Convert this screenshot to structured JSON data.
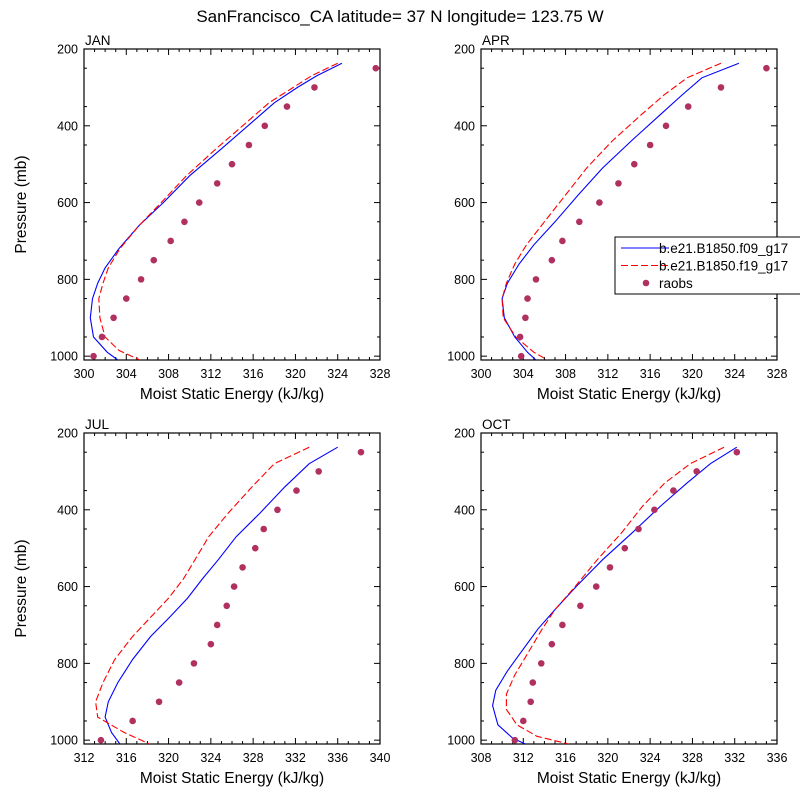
{
  "figure": {
    "title": "SanFrancisco_CA  latitude= 37 N longitude= 123.75 W"
  },
  "legend": {
    "entries": [
      {
        "label": "b.e21.B1850.f09_g17",
        "color": "#0000ff",
        "style": "solid"
      },
      {
        "label": "b.e21.B1850.f19_g17",
        "color": "#ff0000",
        "style": "dashed"
      },
      {
        "label": "raobs",
        "color": "#b03060",
        "style": "dot"
      }
    ]
  },
  "chart_data": [
    {
      "type": "line",
      "title": "JAN",
      "xlabel": "Moist Static Energy (kJ/kg)",
      "ylabel": "Pressure (mb)",
      "xlim": [
        300,
        328
      ],
      "ylim": [
        1010,
        200
      ],
      "xticks": [
        300,
        304,
        308,
        312,
        316,
        320,
        324,
        328
      ],
      "yticks": [
        200,
        400,
        600,
        800,
        1000
      ],
      "series": [
        {
          "name": "b.e21.B1850.f09_g17",
          "color": "#0000ff",
          "style": "solid",
          "points": [
            [
              324.4,
              237
            ],
            [
              322,
              270
            ],
            [
              320.2,
              300
            ],
            [
              318,
              340
            ],
            [
              315.5,
              400
            ],
            [
              313,
              460
            ],
            [
              310,
              530
            ],
            [
              307.5,
              600
            ],
            [
              305.2,
              660
            ],
            [
              303.3,
              720
            ],
            [
              302,
              770
            ],
            [
              301.3,
              810
            ],
            [
              300.8,
              850
            ],
            [
              300.6,
              900
            ],
            [
              300.9,
              950
            ],
            [
              302.2,
              990
            ],
            [
              303.2,
              1010
            ]
          ]
        },
        {
          "name": "b.e21.B1850.f19_g17",
          "color": "#ff0000",
          "style": "dashed",
          "points": [
            [
              324,
              237
            ],
            [
              321.5,
              270
            ],
            [
              319.8,
              300
            ],
            [
              317.5,
              340
            ],
            [
              315,
              400
            ],
            [
              312.5,
              460
            ],
            [
              309.7,
              530
            ],
            [
              307.3,
              600
            ],
            [
              305.2,
              660
            ],
            [
              303.4,
              720
            ],
            [
              302.3,
              770
            ],
            [
              301.8,
              810
            ],
            [
              301.4,
              850
            ],
            [
              301.5,
              900
            ],
            [
              302,
              950
            ],
            [
              303.3,
              985
            ],
            [
              305.3,
              1010
            ]
          ]
        },
        {
          "name": "raobs",
          "color": "#b03060",
          "style": "dot",
          "points": [
            [
              327.6,
              250
            ],
            [
              321.8,
              300
            ],
            [
              319.2,
              350
            ],
            [
              317.1,
              400
            ],
            [
              315.6,
              450
            ],
            [
              314,
              500
            ],
            [
              312.6,
              550
            ],
            [
              310.9,
              600
            ],
            [
              309.5,
              650
            ],
            [
              308.2,
              700
            ],
            [
              306.6,
              750
            ],
            [
              305.4,
              800
            ],
            [
              304,
              850
            ],
            [
              302.8,
              900
            ],
            [
              301.7,
              950
            ],
            [
              300.9,
              1000
            ]
          ]
        }
      ]
    },
    {
      "type": "line",
      "title": "APR",
      "xlabel": "Moist Static Energy (kJ/kg)",
      "ylabel": "",
      "xlim": [
        300,
        328
      ],
      "ylim": [
        1010,
        200
      ],
      "xticks": [
        300,
        304,
        308,
        312,
        316,
        320,
        324,
        328
      ],
      "yticks": [
        200,
        400,
        600,
        800,
        1000
      ],
      "series": [
        {
          "name": "b.e21.B1850.f09_g17",
          "color": "#0000ff",
          "style": "solid",
          "points": [
            [
              324.4,
              237
            ],
            [
              320.9,
              275
            ],
            [
              319,
              320
            ],
            [
              317,
              370
            ],
            [
              314.2,
              440
            ],
            [
              311.5,
              510
            ],
            [
              309.2,
              580
            ],
            [
              307,
              650
            ],
            [
              305,
              710
            ],
            [
              303.6,
              760
            ],
            [
              302.5,
              810
            ],
            [
              302,
              850
            ],
            [
              302.2,
              900
            ],
            [
              303.2,
              950
            ],
            [
              304.4,
              990
            ],
            [
              305.2,
              1010
            ]
          ]
        },
        {
          "name": "b.e21.B1850.f19_g17",
          "color": "#ff0000",
          "style": "dashed",
          "points": [
            [
              322.7,
              237
            ],
            [
              319.5,
              275
            ],
            [
              317.3,
              320
            ],
            [
              315.2,
              370
            ],
            [
              312.4,
              440
            ],
            [
              310,
              510
            ],
            [
              308,
              580
            ],
            [
              306,
              650
            ],
            [
              304.3,
              710
            ],
            [
              303.2,
              760
            ],
            [
              302.4,
              810
            ],
            [
              302,
              850
            ],
            [
              302.1,
              900
            ],
            [
              303.3,
              950
            ],
            [
              305,
              990
            ],
            [
              306.3,
              1010
            ]
          ]
        },
        {
          "name": "raobs",
          "color": "#b03060",
          "style": "dot",
          "points": [
            [
              327,
              250
            ],
            [
              322.7,
              300
            ],
            [
              319.6,
              350
            ],
            [
              317.5,
              400
            ],
            [
              316,
              450
            ],
            [
              314.5,
              500
            ],
            [
              313,
              550
            ],
            [
              311.2,
              600
            ],
            [
              309.3,
              650
            ],
            [
              307.7,
              700
            ],
            [
              306.7,
              750
            ],
            [
              305.2,
              800
            ],
            [
              304.4,
              850
            ],
            [
              304.2,
              900
            ],
            [
              303.7,
              950
            ],
            [
              303.8,
              1000
            ]
          ]
        }
      ]
    },
    {
      "type": "line",
      "title": "JUL",
      "xlabel": "Moist Static Energy (kJ/kg)",
      "ylabel": "Pressure (mb)",
      "xlim": [
        312,
        340
      ],
      "ylim": [
        1010,
        200
      ],
      "xticks": [
        312,
        316,
        320,
        324,
        328,
        332,
        336,
        340
      ],
      "yticks": [
        200,
        400,
        600,
        800,
        1000
      ],
      "series": [
        {
          "name": "b.e21.B1850.f09_g17",
          "color": "#0000ff",
          "style": "solid",
          "points": [
            [
              336,
              237
            ],
            [
              333.3,
              280
            ],
            [
              331,
              340
            ],
            [
              328.6,
              410
            ],
            [
              326.4,
              470
            ],
            [
              324.7,
              530
            ],
            [
              323.2,
              580
            ],
            [
              321.8,
              630
            ],
            [
              320.1,
              680
            ],
            [
              318.3,
              730
            ],
            [
              316.6,
              790
            ],
            [
              315.2,
              850
            ],
            [
              314.3,
              900
            ],
            [
              314,
              940
            ],
            [
              314.6,
              980
            ],
            [
              315.4,
              1010
            ]
          ]
        },
        {
          "name": "b.e21.B1850.f19_g17",
          "color": "#ff0000",
          "style": "dashed",
          "points": [
            [
              333.3,
              237
            ],
            [
              330,
              280
            ],
            [
              327.9,
              340
            ],
            [
              325.6,
              410
            ],
            [
              323.8,
              470
            ],
            [
              322.5,
              530
            ],
            [
              321.4,
              580
            ],
            [
              320,
              630
            ],
            [
              318.3,
              680
            ],
            [
              316.6,
              730
            ],
            [
              314.9,
              790
            ],
            [
              313.8,
              850
            ],
            [
              313.1,
              900
            ],
            [
              313.3,
              940
            ],
            [
              315.8,
              980
            ],
            [
              318.2,
              1010
            ]
          ]
        },
        {
          "name": "raobs",
          "color": "#b03060",
          "style": "dot",
          "points": [
            [
              338.2,
              250
            ],
            [
              334.2,
              300
            ],
            [
              332.1,
              350
            ],
            [
              330.3,
              400
            ],
            [
              329,
              450
            ],
            [
              328.2,
              500
            ],
            [
              327,
              550
            ],
            [
              326.2,
              600
            ],
            [
              325.5,
              650
            ],
            [
              324.6,
              700
            ],
            [
              324,
              750
            ],
            [
              322.4,
              800
            ],
            [
              321,
              850
            ],
            [
              319.1,
              900
            ],
            [
              316.6,
              950
            ],
            [
              313.6,
              1000
            ]
          ]
        }
      ]
    },
    {
      "type": "line",
      "title": "OCT",
      "xlabel": "Moist Static Energy (kJ/kg)",
      "ylabel": "",
      "xlim": [
        308,
        336
      ],
      "ylim": [
        1010,
        200
      ],
      "xticks": [
        308,
        312,
        316,
        320,
        324,
        328,
        332,
        336
      ],
      "yticks": [
        200,
        400,
        600,
        800,
        1000
      ],
      "series": [
        {
          "name": "b.e21.B1850.f09_g17",
          "color": "#0000ff",
          "style": "solid",
          "points": [
            [
              332.2,
              237
            ],
            [
              329.7,
              280
            ],
            [
              327.5,
              330
            ],
            [
              325,
              390
            ],
            [
              322.3,
              460
            ],
            [
              319.5,
              530
            ],
            [
              317,
              600
            ],
            [
              315,
              660
            ],
            [
              313.4,
              710
            ],
            [
              311.8,
              770
            ],
            [
              310.5,
              820
            ],
            [
              309.4,
              870
            ],
            [
              309.1,
              910
            ],
            [
              309.6,
              960
            ],
            [
              311,
              995
            ],
            [
              312.2,
              1010
            ]
          ]
        },
        {
          "name": "b.e21.B1850.f19_g17",
          "color": "#ff0000",
          "style": "dashed",
          "points": [
            [
              331,
              237
            ],
            [
              327.8,
              280
            ],
            [
              325.4,
              330
            ],
            [
              323.3,
              390
            ],
            [
              321.3,
              460
            ],
            [
              319,
              530
            ],
            [
              316.9,
              600
            ],
            [
              315,
              660
            ],
            [
              313.8,
              710
            ],
            [
              312.5,
              770
            ],
            [
              311.2,
              830
            ],
            [
              310.4,
              880
            ],
            [
              310.4,
              920
            ],
            [
              311.4,
              960
            ],
            [
              313.3,
              990
            ],
            [
              316.3,
              1010
            ]
          ]
        },
        {
          "name": "raobs",
          "color": "#b03060",
          "style": "dot",
          "points": [
            [
              332.2,
              250
            ],
            [
              328.4,
              300
            ],
            [
              326.2,
              350
            ],
            [
              324.4,
              400
            ],
            [
              322.9,
              450
            ],
            [
              321.6,
              500
            ],
            [
              320.2,
              550
            ],
            [
              318.9,
              600
            ],
            [
              317.4,
              650
            ],
            [
              315.7,
              700
            ],
            [
              314.7,
              750
            ],
            [
              313.7,
              800
            ],
            [
              312.9,
              850
            ],
            [
              312.7,
              900
            ],
            [
              312,
              950
            ],
            [
              311.2,
              1000
            ]
          ]
        }
      ]
    }
  ]
}
